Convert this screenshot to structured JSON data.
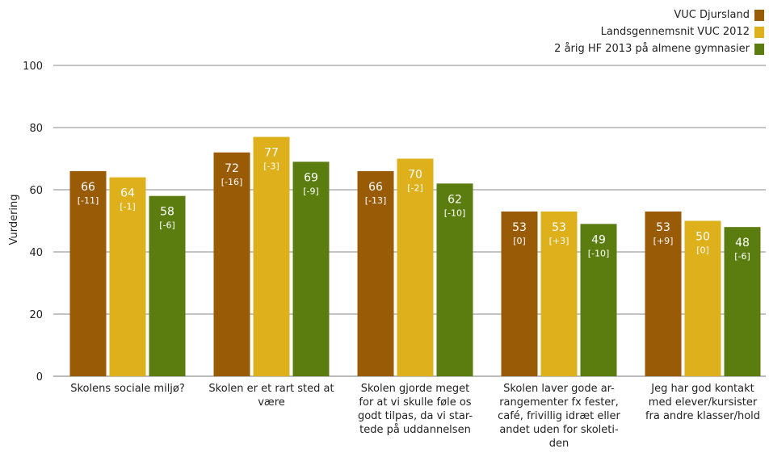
{
  "chart_data": {
    "type": "bar",
    "title": "",
    "xlabel": "",
    "ylabel": "Vurdering",
    "ylim": [
      0,
      100
    ],
    "yticks": [
      0,
      20,
      40,
      60,
      80,
      100
    ],
    "grid": true,
    "legend_position": "top-right",
    "categories": [
      [
        "Skolens sociale miljø?"
      ],
      [
        "Skolen er et rart sted at",
        "være"
      ],
      [
        "Skolen gjorde meget",
        "for at vi skulle føle os",
        "godt tilpas, da vi star-",
        "tede på uddannelsen"
      ],
      [
        "Skolen laver gode ar-",
        "rangementer fx fester,",
        "café, frivillig idræt eller",
        "andet uden for skoleti-",
        "den"
      ],
      [
        "Jeg har god kontakt",
        "med elever/kursister",
        "fra andre klasser/hold"
      ]
    ],
    "series": [
      {
        "name": "VUC Djursland",
        "color": "#9a5b06",
        "values": [
          66,
          72,
          66,
          53,
          53
        ],
        "deltas": [
          "[-11]",
          "[-16]",
          "[-13]",
          "[0]",
          "[+9]"
        ]
      },
      {
        "name": "Landsgennemsnit VUC 2012",
        "color": "#ddb01c",
        "values": [
          64,
          77,
          70,
          53,
          50
        ],
        "deltas": [
          "[-1]",
          "[-3]",
          "[-2]",
          "[+3]",
          "[0]"
        ]
      },
      {
        "name": "2 årig HF 2013 på almene gymnasier",
        "color": "#5b7d10",
        "values": [
          58,
          69,
          62,
          49,
          48
        ],
        "deltas": [
          "[-6]",
          "[-9]",
          "[-10]",
          "[-10]",
          "[-6]"
        ]
      }
    ]
  }
}
